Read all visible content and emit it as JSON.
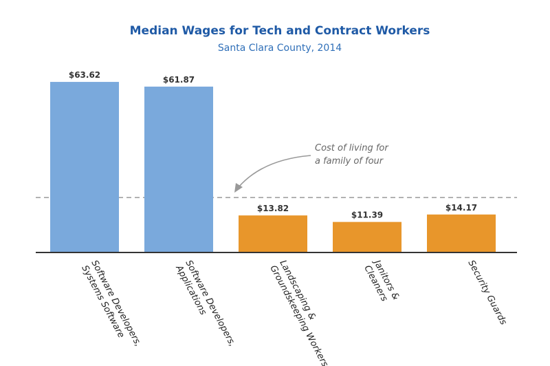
{
  "chart_data": {
    "type": "bar",
    "title": "Median Wages for Tech and Contract Workers",
    "subtitle": "Santa Clara County, 2014",
    "categories": [
      [
        "Software Developers,",
        "Systems Software"
      ],
      [
        "Software Developers,",
        "Applications"
      ],
      [
        "Landscaping &",
        "Groundskeeping Workers"
      ],
      [
        "Janitors &",
        "Cleaners"
      ],
      [
        "Security Guards"
      ]
    ],
    "values": [
      63.62,
      61.87,
      13.82,
      11.39,
      14.17
    ],
    "value_labels": [
      "$63.62",
      "$61.87",
      "$13.82",
      "$11.39",
      "$14.17"
    ],
    "colors": [
      "#7aa9dc",
      "#7aa9dc",
      "#e8962b",
      "#e8962b",
      "#e8962b"
    ],
    "ylim": [
      0,
      68
    ],
    "reference_line": {
      "value": 20.5,
      "style": "dashed",
      "color": "#999999",
      "annotation": [
        "Cost of living for",
        "a family of four"
      ]
    },
    "grid": false,
    "legend": "none"
  }
}
